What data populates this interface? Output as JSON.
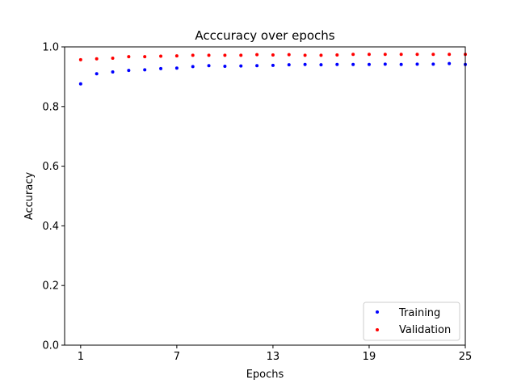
{
  "chart_data": {
    "type": "scatter",
    "title": "Acccuracy over epochs",
    "xlabel": "Epochs",
    "ylabel": "Accuracy",
    "xlim": [
      0,
      25
    ],
    "ylim": [
      0.0,
      1.0
    ],
    "xticks": [
      1,
      7,
      13,
      19,
      25
    ],
    "yticks": [
      0.0,
      0.2,
      0.4,
      0.6,
      0.8,
      1.0
    ],
    "ytick_labels": [
      "0.0",
      "0.2",
      "0.4",
      "0.6",
      "0.8",
      "1.0"
    ],
    "grid": false,
    "legend_position": "bottom-right",
    "x": [
      1,
      2,
      3,
      4,
      5,
      6,
      7,
      8,
      9,
      10,
      11,
      12,
      13,
      14,
      15,
      16,
      17,
      18,
      19,
      20,
      21,
      22,
      23,
      24,
      25
    ],
    "series": [
      {
        "name": "Training",
        "color": "#0000ff",
        "values": [
          0.876,
          0.91,
          0.916,
          0.921,
          0.923,
          0.927,
          0.929,
          0.934,
          0.937,
          0.935,
          0.936,
          0.937,
          0.938,
          0.94,
          0.941,
          0.94,
          0.941,
          0.941,
          0.941,
          0.942,
          0.941,
          0.942,
          0.942,
          0.944,
          0.941
        ]
      },
      {
        "name": "Validation",
        "color": "#ff0000",
        "values": [
          0.957,
          0.96,
          0.962,
          0.967,
          0.967,
          0.969,
          0.97,
          0.972,
          0.972,
          0.972,
          0.972,
          0.974,
          0.973,
          0.974,
          0.972,
          0.972,
          0.973,
          0.975,
          0.975,
          0.975,
          0.975,
          0.975,
          0.975,
          0.975,
          0.975
        ]
      }
    ]
  }
}
